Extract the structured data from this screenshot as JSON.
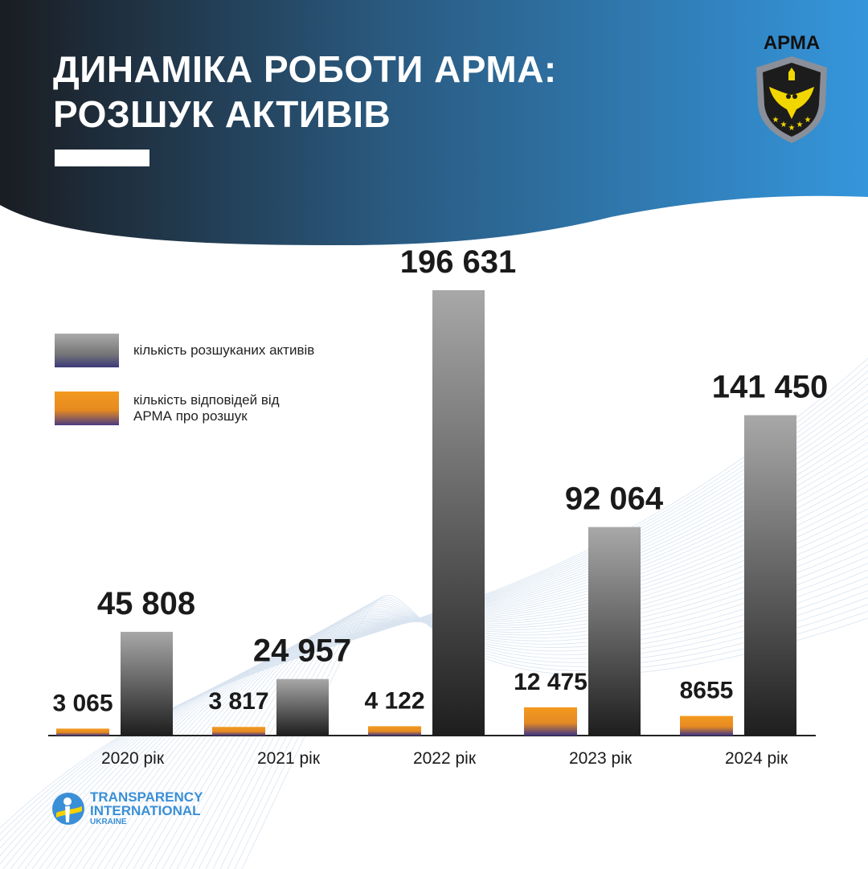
{
  "header": {
    "title_line1": "ДИНАМІКА РОБОТИ АРМА:",
    "title_line2": "РОЗШУК АКТИВІВ",
    "logo_text": "АРМА"
  },
  "legend": [
    {
      "label": "кількість розшуканих активів",
      "color": "#9a9a9a"
    },
    {
      "label": "кількість відповідей від АРМА про розшук",
      "color": "#f0921e"
    }
  ],
  "footer": {
    "org_line1": "TRANSPARENCY",
    "org_line2": "INTERNATIONAL",
    "org_line3": "UKRAINE"
  },
  "chart_data": {
    "type": "bar",
    "title": "ДИНАМІКА РОБОТИ АРМА: РОЗШУК АКТИВІВ",
    "categories": [
      "2020 рік",
      "2021 рік",
      "2022 рік",
      "2023 рік",
      "2024 рік"
    ],
    "series": [
      {
        "name": "кількість відповідей від АРМА про розшук",
        "color": "#f0921e",
        "values": [
          3065,
          3817,
          4122,
          12475,
          8655
        ],
        "labels": [
          "3 065",
          "3 817",
          "4 122",
          "12 475",
          "8655"
        ]
      },
      {
        "name": "кількість розшуканих активів",
        "color": "#9a9a9a",
        "values": [
          45808,
          24957,
          196631,
          92064,
          141450
        ],
        "labels": [
          "45 808",
          "24 957",
          "196 631",
          "92 064",
          "141 450"
        ]
      }
    ],
    "xlabel": "",
    "ylabel": "",
    "ylim": [
      0,
      196631
    ],
    "grid": false,
    "legend_position": "left"
  }
}
